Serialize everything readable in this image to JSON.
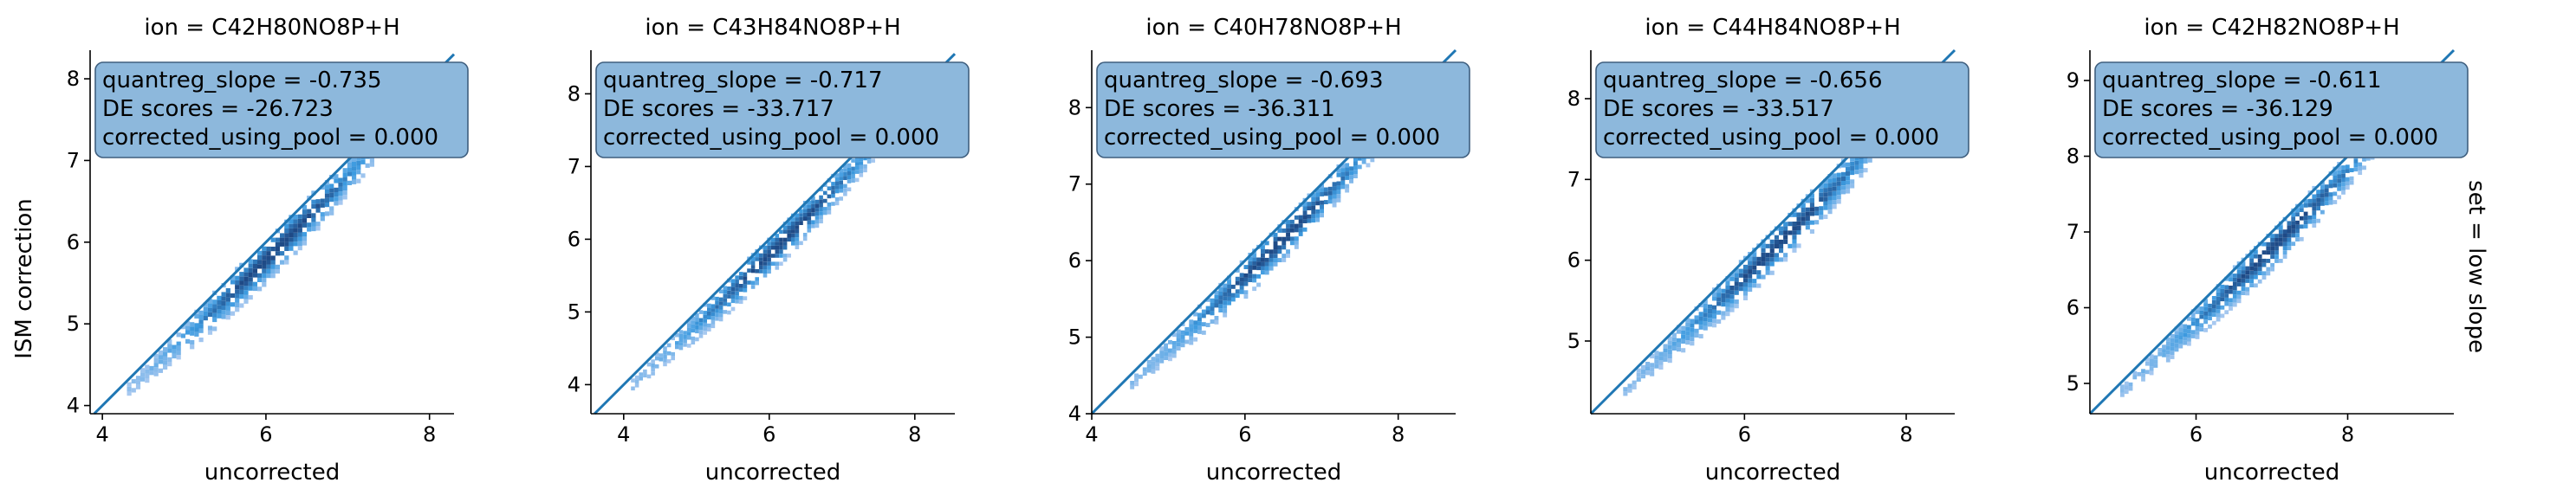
{
  "figure": {
    "ylabel": "ISM correction",
    "row_label": "set = low slope",
    "colors": {
      "hex_light": "#a9c9f0",
      "hex_mid": "#3d9be0",
      "hex_dark": "#1f4a86",
      "line": "#1f77b4",
      "annotation_fill": "#8db8dc",
      "annotation_edge": "#3f5f7f"
    }
  },
  "chart_data": [
    {
      "type": "heatmap",
      "title": "ion = C42H80NO8P+H",
      "xlabel": "uncorrected",
      "ylabel": "ISM correction",
      "xlim": [
        3.85,
        8.3
      ],
      "ylim": [
        3.9,
        8.35
      ],
      "xticks": [
        4,
        6,
        8
      ],
      "yticks": [
        4,
        5,
        6,
        7,
        8
      ],
      "line": {
        "slope": 1.0,
        "intercept": 0.0
      },
      "data_extent": {
        "x": [
          4.3,
          7.9
        ],
        "y": [
          4.1,
          7.9
        ]
      },
      "annotation": [
        "quantreg_slope = -0.735",
        "DE scores = -26.723",
        "corrected_using_pool = 0.000"
      ]
    },
    {
      "type": "heatmap",
      "title": "ion = C43H84NO8P+H",
      "xlabel": "uncorrected",
      "ylabel": "",
      "xlim": [
        3.55,
        8.55
      ],
      "ylim": [
        3.6,
        8.6
      ],
      "xticks": [
        4,
        6,
        8
      ],
      "yticks": [
        4,
        5,
        6,
        7,
        8
      ],
      "line": {
        "slope": 1.0,
        "intercept": 0.0
      },
      "data_extent": {
        "x": [
          4.1,
          8.1
        ],
        "y": [
          3.8,
          8.0
        ]
      },
      "annotation": [
        "quantreg_slope = -0.717",
        "DE scores = -33.717",
        "corrected_using_pool = 0.000"
      ]
    },
    {
      "type": "heatmap",
      "title": "ion = C40H78NO8P+H",
      "xlabel": "uncorrected",
      "ylabel": "",
      "xlim": [
        4.0,
        8.75
      ],
      "ylim": [
        4.0,
        8.75
      ],
      "xticks": [
        4,
        6,
        8
      ],
      "yticks": [
        4,
        5,
        6,
        7,
        8
      ],
      "line": {
        "slope": 1.0,
        "intercept": 0.0
      },
      "data_extent": {
        "x": [
          4.5,
          8.3
        ],
        "y": [
          4.3,
          8.2
        ]
      },
      "annotation": [
        "quantreg_slope = -0.693",
        "DE scores = -36.311",
        "corrected_using_pool = 0.000"
      ]
    },
    {
      "type": "heatmap",
      "title": "ion = C44H84NO8P+H",
      "xlabel": "uncorrected",
      "ylabel": "",
      "xlim": [
        4.1,
        8.6
      ],
      "ylim": [
        4.1,
        8.6
      ],
      "xticks": [
        6,
        8
      ],
      "yticks": [
        5,
        6,
        7,
        8
      ],
      "line": {
        "slope": 1.0,
        "intercept": 0.0
      },
      "data_extent": {
        "x": [
          4.5,
          8.3
        ],
        "y": [
          4.4,
          8.2
        ]
      },
      "annotation": [
        "quantreg_slope = -0.656",
        "DE scores = -33.517",
        "corrected_using_pool = 0.000"
      ]
    },
    {
      "type": "heatmap",
      "title": "ion = C42H82NO8P+H",
      "xlabel": "uncorrected",
      "ylabel": "",
      "xlim": [
        4.6,
        9.4
      ],
      "ylim": [
        4.6,
        9.4
      ],
      "xticks": [
        6,
        8
      ],
      "yticks": [
        5,
        6,
        7,
        8,
        9
      ],
      "line": {
        "slope": 1.0,
        "intercept": 0.0
      },
      "data_extent": {
        "x": [
          5.0,
          9.0
        ],
        "y": [
          4.8,
          8.9
        ]
      },
      "annotation": [
        "quantreg_slope = -0.611",
        "DE scores = -36.129",
        "corrected_using_pool = 0.000"
      ]
    }
  ]
}
